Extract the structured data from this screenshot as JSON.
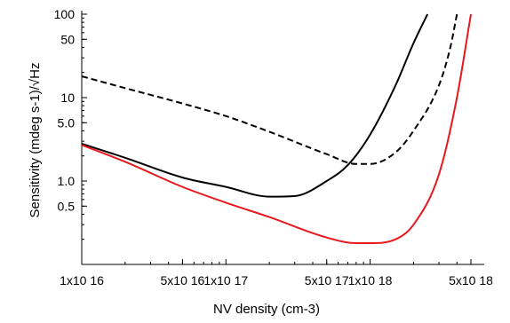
{
  "chart_data": {
    "type": "line",
    "xlabel": "NV density (cm-3)",
    "ylabel": "Sensitivity (mdeg s-1)/√Hz",
    "x_scale": "log",
    "y_scale": "log",
    "xlim": [
      1e+16,
      5e+18
    ],
    "ylim": [
      0.1,
      100
    ],
    "grid": false,
    "x_ticks": [
      {
        "value": 1e+16,
        "label": "1x10 16"
      },
      {
        "value": 5e+16,
        "label": "5x10 16"
      },
      {
        "value": 1e+17,
        "label": "1x10 17"
      },
      {
        "value": 5e+17,
        "label": "5x10 17"
      },
      {
        "value": 1e+18,
        "label": "1x10 18"
      },
      {
        "value": 5e+18,
        "label": "5x10 18"
      }
    ],
    "y_ticks": [
      {
        "value": 0.5,
        "label": "0.5"
      },
      {
        "value": 1.0,
        "label": "1.0"
      },
      {
        "value": 5.0,
        "label": "5.0"
      },
      {
        "value": 10,
        "label": "10"
      },
      {
        "value": 50,
        "label": "50"
      },
      {
        "value": 100,
        "label": "100"
      }
    ],
    "series": [
      {
        "style": "dashed",
        "color": "#000000",
        "x": [
          1e+16,
          2e+16,
          5e+16,
          1e+17,
          2e+17,
          5e+17,
          8e+17,
          1e+18,
          1.5e+18,
          2e+18,
          3e+18,
          3.6e+18,
          4e+18
        ],
        "y": [
          18,
          13,
          8.5,
          6,
          3.9,
          2.1,
          1.6,
          1.6,
          2.2,
          4,
          14,
          40,
          100
        ]
      },
      {
        "style": "solid",
        "color": "#000000",
        "x": [
          1e+16,
          2e+16,
          5e+16,
          1e+17,
          2e+17,
          3e+17,
          5e+17,
          7e+17,
          1e+18,
          1.5e+18,
          2e+18,
          2.5e+18
        ],
        "y": [
          2.8,
          1.9,
          1.1,
          0.85,
          0.65,
          0.66,
          1.0,
          1.55,
          3.6,
          14,
          45,
          100
        ]
      },
      {
        "style": "solid",
        "color": "#e8191c",
        "x": [
          1e+16,
          2e+16,
          5e+16,
          1e+17,
          2e+17,
          5e+17,
          8e+17,
          1e+18,
          1.5e+18,
          2e+18,
          3e+18,
          4e+18,
          5e+18
        ],
        "y": [
          2.7,
          1.7,
          0.85,
          0.55,
          0.37,
          0.21,
          0.18,
          0.18,
          0.2,
          0.3,
          1.2,
          10,
          100
        ]
      }
    ]
  }
}
